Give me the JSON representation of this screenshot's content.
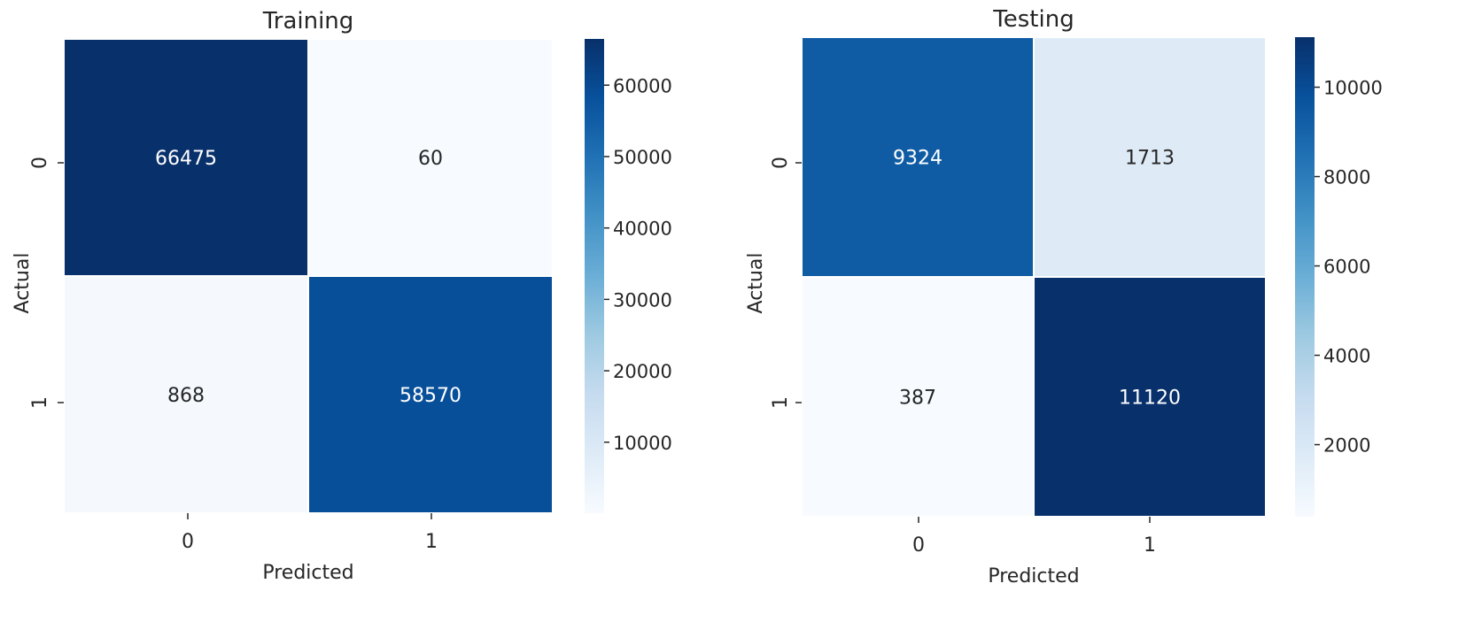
{
  "chart_data": [
    {
      "type": "heatmap",
      "title": "Training",
      "xlabel": "Predicted",
      "ylabel": "Actual",
      "x_categories": [
        "0",
        "1"
      ],
      "y_categories": [
        "0",
        "1"
      ],
      "values": [
        [
          66475,
          60
        ],
        [
          868,
          58570
        ]
      ],
      "annotations": [
        [
          "66475",
          "60"
        ],
        [
          "868",
          "58570"
        ]
      ],
      "colormap": "Blues",
      "colorbar": {
        "range": [
          60,
          66475
        ],
        "ticks": [
          "10000",
          "20000",
          "30000",
          "40000",
          "50000",
          "60000"
        ]
      }
    },
    {
      "type": "heatmap",
      "title": "Testing",
      "xlabel": "Predicted",
      "ylabel": "Actual",
      "x_categories": [
        "0",
        "1"
      ],
      "y_categories": [
        "0",
        "1"
      ],
      "values": [
        [
          9324,
          1713
        ],
        [
          387,
          11120
        ]
      ],
      "annotations": [
        [
          "9324",
          "1713"
        ],
        [
          "387",
          "11120"
        ]
      ],
      "colormap": "Blues",
      "colorbar": {
        "range": [
          387,
          11120
        ],
        "ticks": [
          "2000",
          "4000",
          "6000",
          "8000",
          "10000"
        ]
      }
    }
  ]
}
